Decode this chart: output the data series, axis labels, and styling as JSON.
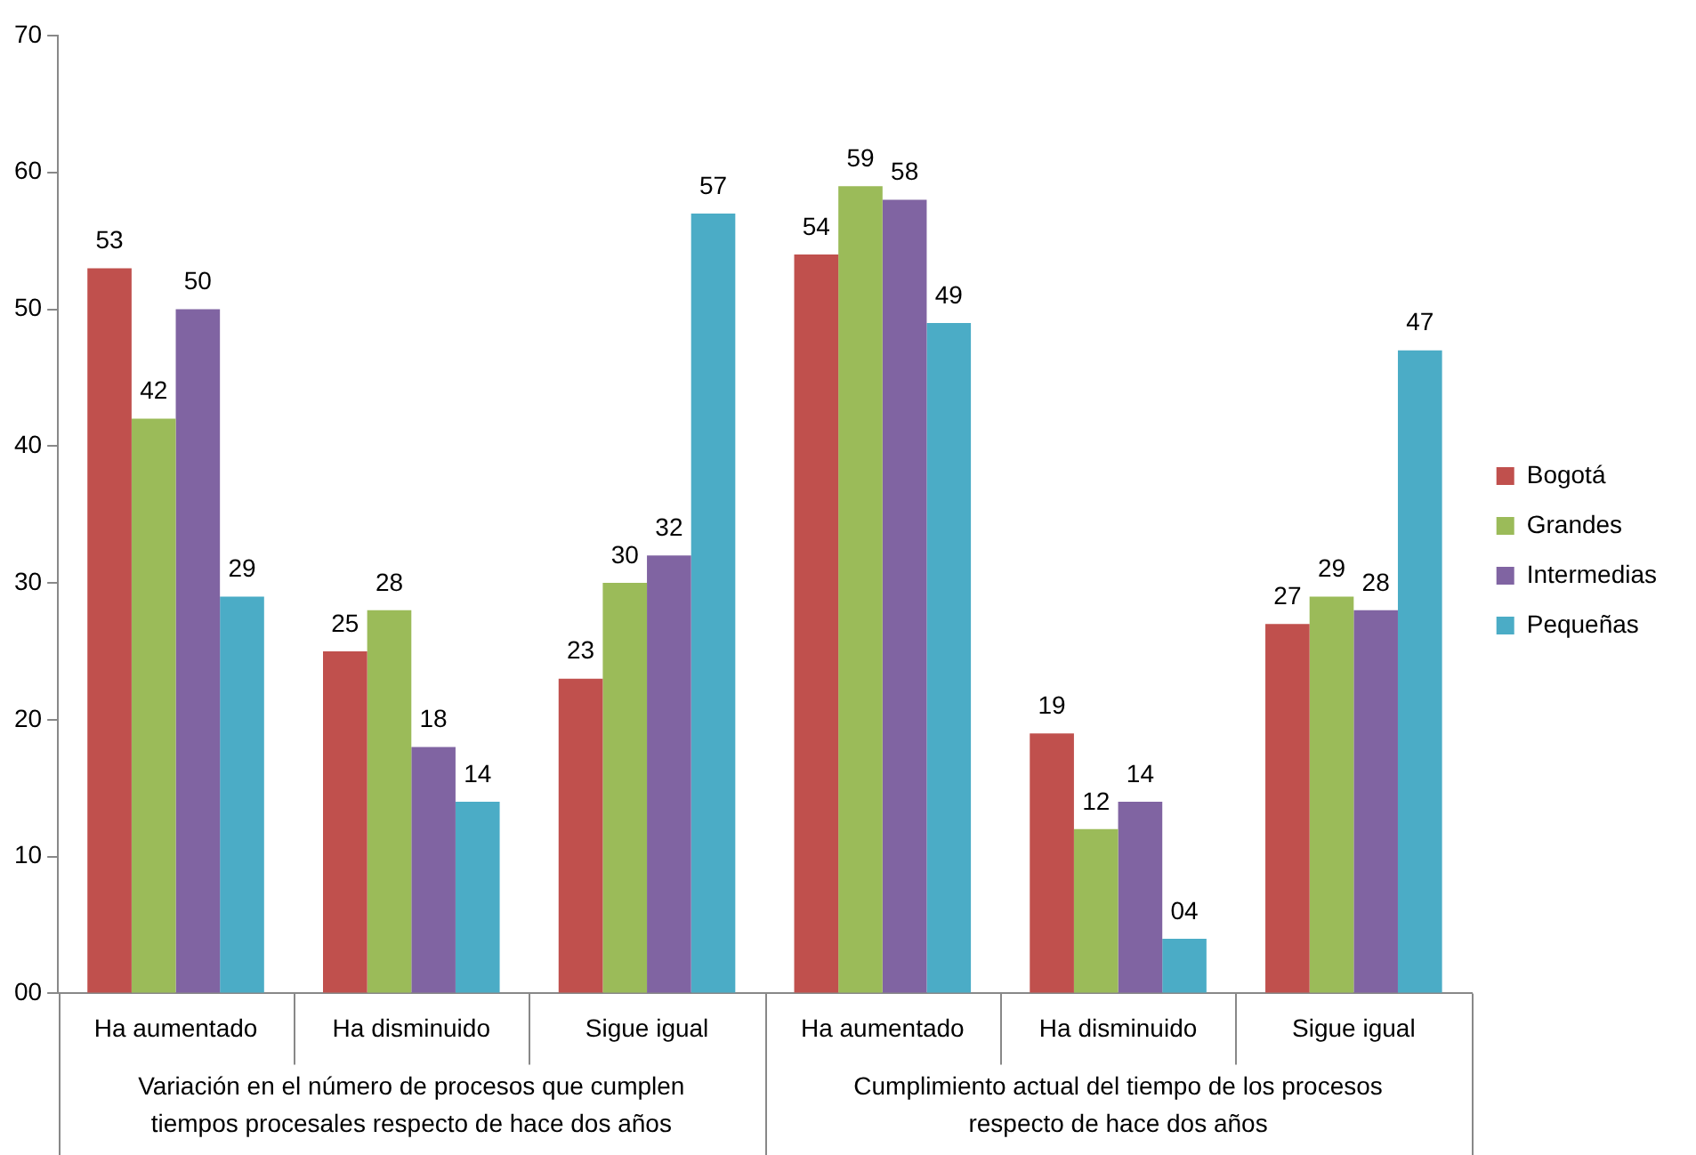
{
  "chart_data": {
    "type": "bar",
    "categories": [
      "Ha aumentado",
      "Ha disminuido",
      "Sigue igual",
      "Ha aumentado",
      "Ha disminuido",
      "Sigue igual"
    ],
    "series": [
      {
        "name": "Bogotá",
        "color": "#c0504d",
        "values": [
          53,
          25,
          23,
          54,
          19,
          27
        ],
        "value_labels": [
          "53",
          "25",
          "23",
          "54",
          "19",
          "27"
        ]
      },
      {
        "name": "Grandes",
        "color": "#9bbb59",
        "values": [
          42,
          28,
          30,
          59,
          12,
          29
        ],
        "value_labels": [
          "42",
          "28",
          "30",
          "59",
          "12",
          "29"
        ]
      },
      {
        "name": "Intermedias",
        "color": "#8064a2",
        "values": [
          50,
          18,
          32,
          58,
          14,
          28
        ],
        "value_labels": [
          "50",
          "18",
          "32",
          "58",
          "14",
          "28"
        ]
      },
      {
        "name": "Pequeñas",
        "color": "#4bacc6",
        "values": [
          29,
          14,
          57,
          49,
          4,
          47
        ],
        "value_labels": [
          "29",
          "14",
          "57",
          "49",
          "04",
          "47"
        ]
      }
    ],
    "ylim": [
      0,
      70
    ],
    "yticks": [
      {
        "value": 0,
        "label": "00"
      },
      10,
      20,
      30,
      40,
      50,
      60,
      70
    ],
    "grid": false,
    "legend": "right",
    "annotations": [
      "Variación en el número de procesos que cumplen tiempos procesales respecto de hace dos años",
      "Cumplimiento actual del tiempo de los procesos respecto de hace dos años"
    ]
  }
}
